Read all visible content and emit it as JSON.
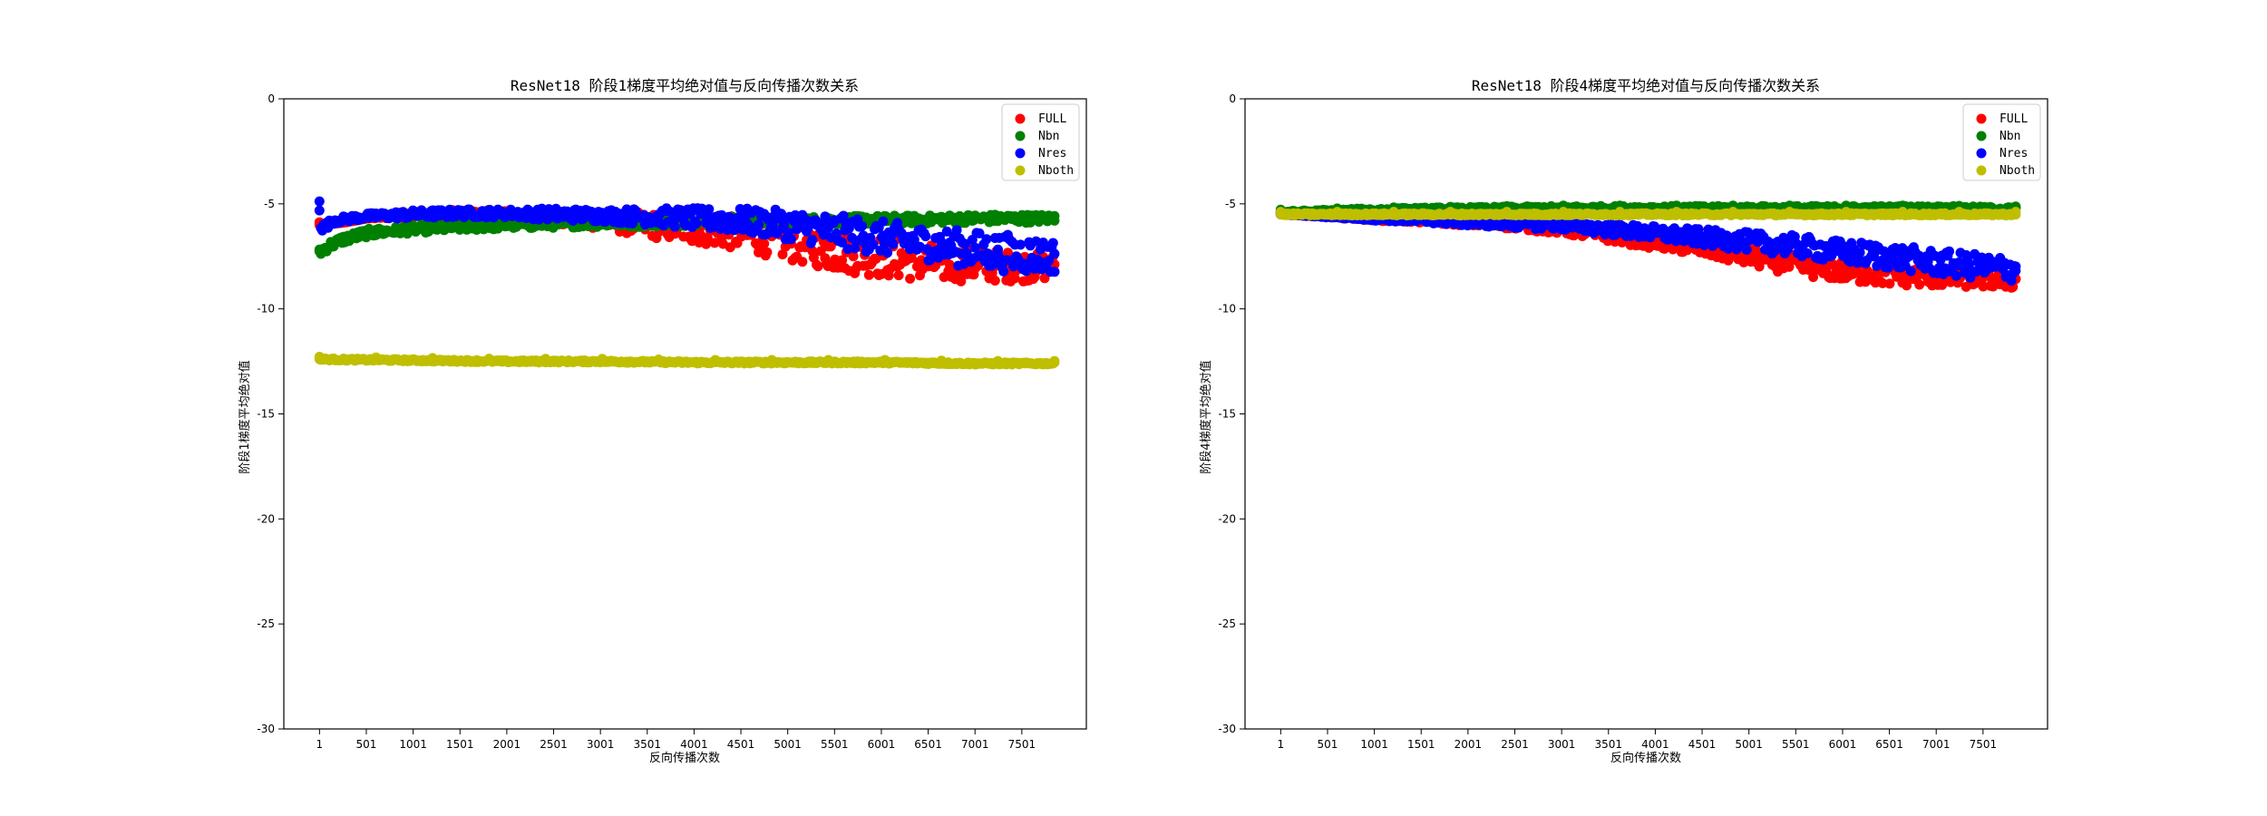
{
  "chart_data": [
    {
      "type": "scatter",
      "title": "ResNet18 阶段1梯度平均绝对值与反向传播次数关系",
      "xlabel": "反向传播次数",
      "ylabel": "阶段1梯度平均绝对值",
      "xticks": [
        1,
        501,
        1001,
        1501,
        2001,
        2501,
        3001,
        3501,
        4001,
        4501,
        5001,
        5501,
        6001,
        6501,
        7001,
        7501
      ],
      "xlim": [
        -380,
        8190
      ],
      "ylim": [
        -30,
        0
      ],
      "yticks": [
        0,
        -5,
        -10,
        -15,
        -20,
        -25,
        -30
      ],
      "grid": false,
      "legend_position": "top-right",
      "series": [
        {
          "name": "FULL",
          "color": "#ff0000",
          "points": [
            [
              1,
              -6.0
            ],
            [
              250,
              -5.9
            ],
            [
              500,
              -5.7
            ],
            [
              1000,
              -5.5
            ],
            [
              1500,
              -5.5
            ],
            [
              2000,
              -5.6
            ],
            [
              2500,
              -5.7
            ],
            [
              3000,
              -5.8
            ],
            [
              3500,
              -6.0
            ],
            [
              4000,
              -6.2
            ],
            [
              4500,
              -6.4
            ],
            [
              5000,
              -6.8
            ],
            [
              5500,
              -7.2
            ],
            [
              6000,
              -7.5
            ],
            [
              6500,
              -7.8
            ],
            [
              7000,
              -7.9
            ],
            [
              7500,
              -8.0
            ],
            [
              7850,
              -8.0
            ]
          ],
          "spread": [
            0,
            0,
            0,
            0.2,
            0.2,
            0.3,
            0.3,
            0.4,
            0.6,
            0.7,
            0.8,
            0.9,
            1.0,
            1.0,
            0.9,
            0.8,
            0.7,
            0.6
          ]
        },
        {
          "name": "Nbn",
          "color": "#008000",
          "points": [
            [
              1,
              -7.3
            ],
            [
              100,
              -7.0
            ],
            [
              250,
              -6.7
            ],
            [
              500,
              -6.4
            ],
            [
              1000,
              -6.2
            ],
            [
              1500,
              -6.1
            ],
            [
              2000,
              -6.0
            ],
            [
              2500,
              -5.95
            ],
            [
              3000,
              -5.9
            ],
            [
              3500,
              -5.9
            ],
            [
              4000,
              -5.85
            ],
            [
              4500,
              -5.8
            ],
            [
              5000,
              -5.8
            ],
            [
              5500,
              -5.8
            ],
            [
              6000,
              -5.75
            ],
            [
              6500,
              -5.75
            ],
            [
              7000,
              -5.7
            ],
            [
              7500,
              -5.7
            ],
            [
              7850,
              -5.7
            ]
          ],
          "spread": [
            0.2,
            0.2,
            0.2,
            0.2,
            0.2,
            0.2,
            0.2,
            0.2,
            0.2,
            0.2,
            0.2,
            0.2,
            0.2,
            0.2,
            0.2,
            0.2,
            0.2,
            0.2,
            0.2
          ]
        },
        {
          "name": "Nres",
          "color": "#0000ff",
          "points": [
            [
              1,
              -5.0
            ],
            [
              20,
              -6.2
            ],
            [
              150,
              -5.8
            ],
            [
              500,
              -5.6
            ],
            [
              1000,
              -5.5
            ],
            [
              1500,
              -5.45
            ],
            [
              2000,
              -5.45
            ],
            [
              2500,
              -5.5
            ],
            [
              3000,
              -5.55
            ],
            [
              3500,
              -5.6
            ],
            [
              4000,
              -5.7
            ],
            [
              4500,
              -5.8
            ],
            [
              5000,
              -6.0
            ],
            [
              5500,
              -6.3
            ],
            [
              6000,
              -6.6
            ],
            [
              6500,
              -6.9
            ],
            [
              7000,
              -7.2
            ],
            [
              7500,
              -7.4
            ],
            [
              7850,
              -7.5
            ]
          ],
          "spread": [
            0.4,
            0.2,
            0.15,
            0.15,
            0.2,
            0.2,
            0.2,
            0.3,
            0.3,
            0.4,
            0.5,
            0.6,
            0.7,
            0.8,
            0.8,
            0.8,
            0.9,
            0.9,
            0.8
          ]
        },
        {
          "name": "Nboth",
          "color": "#bfbf00",
          "points": [
            [
              1,
              -12.4
            ],
            [
              1000,
              -12.45
            ],
            [
              2000,
              -12.5
            ],
            [
              3000,
              -12.5
            ],
            [
              4000,
              -12.55
            ],
            [
              5000,
              -12.55
            ],
            [
              6000,
              -12.55
            ],
            [
              7000,
              -12.6
            ],
            [
              7850,
              -12.6
            ]
          ],
          "spread": [
            0.05,
            0.05,
            0.05,
            0.05,
            0.05,
            0.05,
            0.05,
            0.05,
            0.05
          ]
        }
      ]
    },
    {
      "type": "scatter",
      "title": "ResNet18 阶段4梯度平均绝对值与反向传播次数关系",
      "xlabel": "反向传播次数",
      "ylabel": "阶段4梯度平均绝对值",
      "xticks": [
        1,
        501,
        1001,
        1501,
        2001,
        2501,
        3001,
        3501,
        4001,
        4501,
        5001,
        5501,
        6001,
        6501,
        7001,
        7501
      ],
      "xlim": [
        -380,
        8190
      ],
      "ylim": [
        -30,
        0
      ],
      "yticks": [
        0,
        -5,
        -10,
        -15,
        -20,
        -25,
        -30
      ],
      "grid": false,
      "legend_position": "top-right",
      "series": [
        {
          "name": "FULL",
          "color": "#ff0000",
          "points": [
            [
              1,
              -5.5
            ],
            [
              500,
              -5.6
            ],
            [
              1000,
              -5.7
            ],
            [
              1500,
              -5.8
            ],
            [
              2000,
              -5.9
            ],
            [
              2500,
              -6.0
            ],
            [
              3000,
              -6.2
            ],
            [
              3500,
              -6.5
            ],
            [
              4000,
              -6.8
            ],
            [
              4500,
              -7.1
            ],
            [
              5000,
              -7.5
            ],
            [
              5500,
              -7.9
            ],
            [
              6000,
              -8.2
            ],
            [
              6500,
              -8.4
            ],
            [
              7000,
              -8.5
            ],
            [
              7500,
              -8.6
            ],
            [
              7850,
              -8.7
            ]
          ],
          "spread": [
            0,
            0.05,
            0.1,
            0.1,
            0.15,
            0.2,
            0.25,
            0.3,
            0.35,
            0.4,
            0.45,
            0.5,
            0.5,
            0.5,
            0.45,
            0.4,
            0.35
          ]
        },
        {
          "name": "Nbn",
          "color": "#008000",
          "points": [
            [
              1,
              -5.4
            ],
            [
              500,
              -5.35
            ],
            [
              1000,
              -5.3
            ],
            [
              2000,
              -5.25
            ],
            [
              3000,
              -5.2
            ],
            [
              4000,
              -5.2
            ],
            [
              5000,
              -5.2
            ],
            [
              6000,
              -5.2
            ],
            [
              7000,
              -5.2
            ],
            [
              7850,
              -5.25
            ]
          ],
          "spread": [
            0.05,
            0.08,
            0.1,
            0.1,
            0.1,
            0.1,
            0.1,
            0.1,
            0.1,
            0.1
          ]
        },
        {
          "name": "Nres",
          "color": "#0000ff",
          "points": [
            [
              1,
              -5.5
            ],
            [
              500,
              -5.6
            ],
            [
              1000,
              -5.7
            ],
            [
              1500,
              -5.8
            ],
            [
              2000,
              -5.9
            ],
            [
              2500,
              -5.95
            ],
            [
              3000,
              -6.0
            ],
            [
              3500,
              -6.2
            ],
            [
              4000,
              -6.4
            ],
            [
              4500,
              -6.6
            ],
            [
              5000,
              -6.8
            ],
            [
              5500,
              -7.0
            ],
            [
              6000,
              -7.3
            ],
            [
              6500,
              -7.5
            ],
            [
              7000,
              -7.8
            ],
            [
              7500,
              -8.0
            ],
            [
              7850,
              -8.1
            ]
          ],
          "spread": [
            0,
            0.05,
            0.1,
            0.1,
            0.15,
            0.2,
            0.25,
            0.3,
            0.35,
            0.4,
            0.45,
            0.5,
            0.55,
            0.6,
            0.6,
            0.6,
            0.6
          ]
        },
        {
          "name": "Nboth",
          "color": "#bfbf00",
          "points": [
            [
              1,
              -5.5
            ],
            [
              1000,
              -5.5
            ],
            [
              2000,
              -5.5
            ],
            [
              3000,
              -5.5
            ],
            [
              4000,
              -5.5
            ],
            [
              5000,
              -5.5
            ],
            [
              6000,
              -5.5
            ],
            [
              7000,
              -5.5
            ],
            [
              7850,
              -5.5
            ]
          ],
          "spread": [
            0.05,
            0.05,
            0.05,
            0.05,
            0.05,
            0.05,
            0.05,
            0.05,
            0.05
          ]
        }
      ]
    }
  ]
}
